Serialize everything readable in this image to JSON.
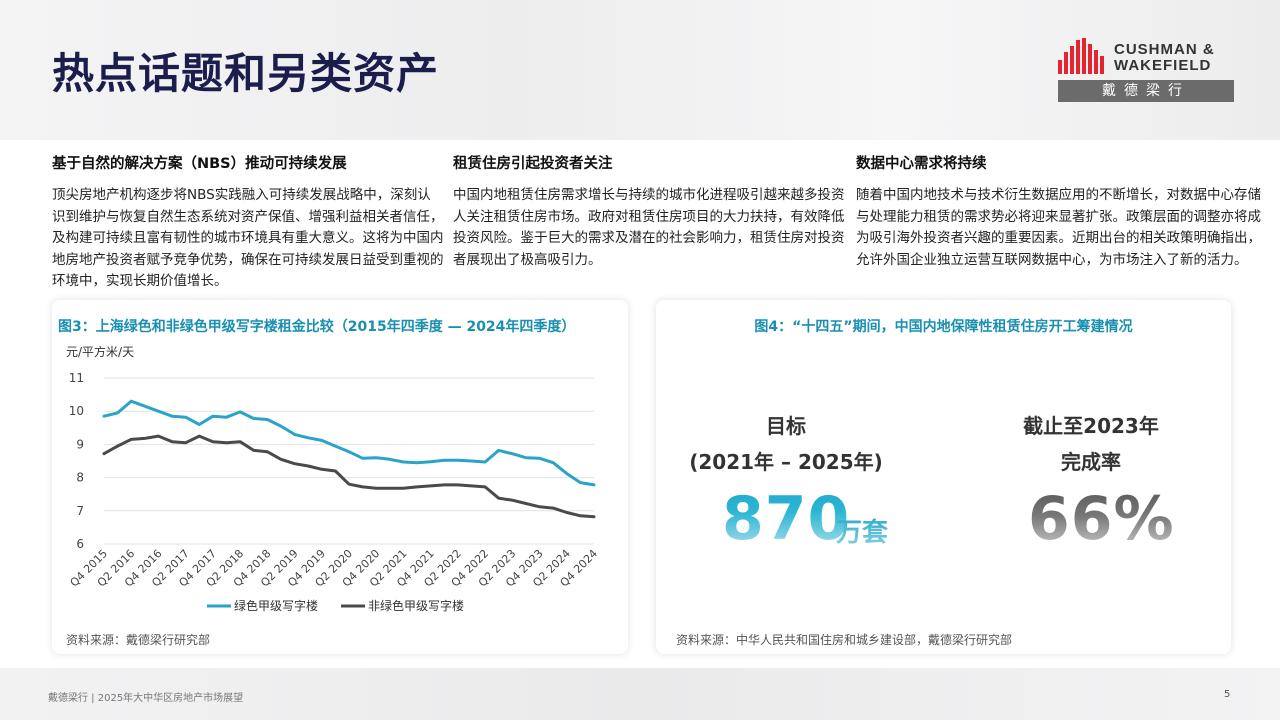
{
  "page": {
    "title": "热点话题和另类资产",
    "footer": "戴德梁行 | 2025年大中华区房地产市场展望",
    "page_number": "5"
  },
  "logo": {
    "line1": "CUSHMAN &",
    "line2": "WAKEFIELD",
    "cn": "戴德梁行"
  },
  "columns": [
    {
      "heading": "基于自然的解决方案（NBS）推动可持续发展",
      "body": "顶尖房地产机构逐步将NBS实践融入可持续发展战略中，深刻认识到维护与恢复自然生态系统对资产保值、增强利益相关者信任，及构建可持续且富有韧性的城市环境具有重大意义。这将为中国内地房地产投资者赋予竞争优势，确保在可持续发展日益受到重视的环境中，实现长期价值增长。"
    },
    {
      "heading": "租赁住房引起投资者关注",
      "body": "中国内地租赁住房需求增长与持续的城市化进程吸引越来越多投资人关注租赁住房市场。政府对租赁住房项目的大力扶持，有效降低投资风险。鉴于巨大的需求及潜在的社会影响力，租赁住房对投资者展现出了极高吸引力。"
    },
    {
      "heading": "数据中心需求将持续",
      "body": "随着中国内地技术与技术衍生数据应用的不断增长，对数据中心存储与处理能力租赁的需求势必将迎来显著扩张。政策层面的调整亦将成为吸引海外投资者兴趣的重要因素。近期出台的相关政策明确指出，允许外国企业独立运营互联网数据中心，为市场注入了新的活力。"
    }
  ],
  "figure3": {
    "title": "图3：上海绿色和非绿色甲级写字楼租金比较（2015年四季度 — 2024年四季度）",
    "source": "资料来源：戴德梁行研究部"
  },
  "figure4": {
    "title": "图4：“十四五”期间，中国内地保障性租赁住房开工筹建情况",
    "source": "资料来源：中华人民共和国住房和城乡建设部，戴德梁行研究部",
    "target_label1": "目标",
    "target_label2": "(2021年 – 2025年)",
    "target_value": "870",
    "target_unit": "万套",
    "progress_label1": "截止至2023年",
    "progress_label2": "完成率",
    "progress_value": "66%"
  },
  "chart_data": {
    "type": "line",
    "title": "图3：上海绿色和非绿色甲级写字楼租金比较（2015年四季度 — 2024年四季度）",
    "ylabel": "元/平方米/天",
    "ylim": [
      6,
      11
    ],
    "yticks": [
      6,
      7,
      8,
      9,
      10,
      11
    ],
    "grid": true,
    "legend_position": "bottom",
    "x_tick_labels": [
      "Q4 2015",
      "Q2 2016",
      "Q4 2016",
      "Q2 2017",
      "Q4 2017",
      "Q2 2018",
      "Q4 2018",
      "Q2 2019",
      "Q4 2019",
      "Q2 2020",
      "Q4 2020",
      "Q2 2021",
      "Q4 2021",
      "Q2 2022",
      "Q4 2022",
      "Q2 2023",
      "Q4 2023",
      "Q2 2024",
      "Q4 2024"
    ],
    "x": [
      "Q4 2015",
      "Q1 2016",
      "Q2 2016",
      "Q3 2016",
      "Q4 2016",
      "Q1 2017",
      "Q2 2017",
      "Q3 2017",
      "Q4 2017",
      "Q1 2018",
      "Q2 2018",
      "Q3 2018",
      "Q4 2018",
      "Q1 2019",
      "Q2 2019",
      "Q3 2019",
      "Q4 2019",
      "Q1 2020",
      "Q2 2020",
      "Q3 2020",
      "Q4 2020",
      "Q1 2021",
      "Q2 2021",
      "Q3 2021",
      "Q4 2021",
      "Q1 2022",
      "Q2 2022",
      "Q3 2022",
      "Q4 2022",
      "Q1 2023",
      "Q2 2023",
      "Q3 2023",
      "Q4 2023",
      "Q1 2024",
      "Q2 2024",
      "Q3 2024",
      "Q4 2024"
    ],
    "series": [
      {
        "name": "绿色甲级写字楼",
        "color": "#2aa3c9",
        "values": [
          9.85,
          9.95,
          10.3,
          10.15,
          10.0,
          9.85,
          9.82,
          9.6,
          9.85,
          9.82,
          9.98,
          9.78,
          9.75,
          9.55,
          9.3,
          9.2,
          9.12,
          8.95,
          8.78,
          8.58,
          8.6,
          8.55,
          8.47,
          8.45,
          8.48,
          8.52,
          8.52,
          8.5,
          8.47,
          8.82,
          8.72,
          8.6,
          8.58,
          8.45,
          8.12,
          7.85,
          7.78
        ]
      },
      {
        "name": "非绿色甲级写字楼",
        "color": "#4a4a4a",
        "values": [
          8.72,
          8.95,
          9.15,
          9.18,
          9.25,
          9.08,
          9.05,
          9.25,
          9.08,
          9.05,
          9.08,
          8.82,
          8.78,
          8.55,
          8.42,
          8.35,
          8.25,
          8.2,
          7.8,
          7.72,
          7.68,
          7.68,
          7.68,
          7.72,
          7.75,
          7.78,
          7.78,
          7.75,
          7.72,
          7.38,
          7.32,
          7.22,
          7.12,
          7.08,
          6.95,
          6.85,
          6.82
        ]
      }
    ]
  }
}
